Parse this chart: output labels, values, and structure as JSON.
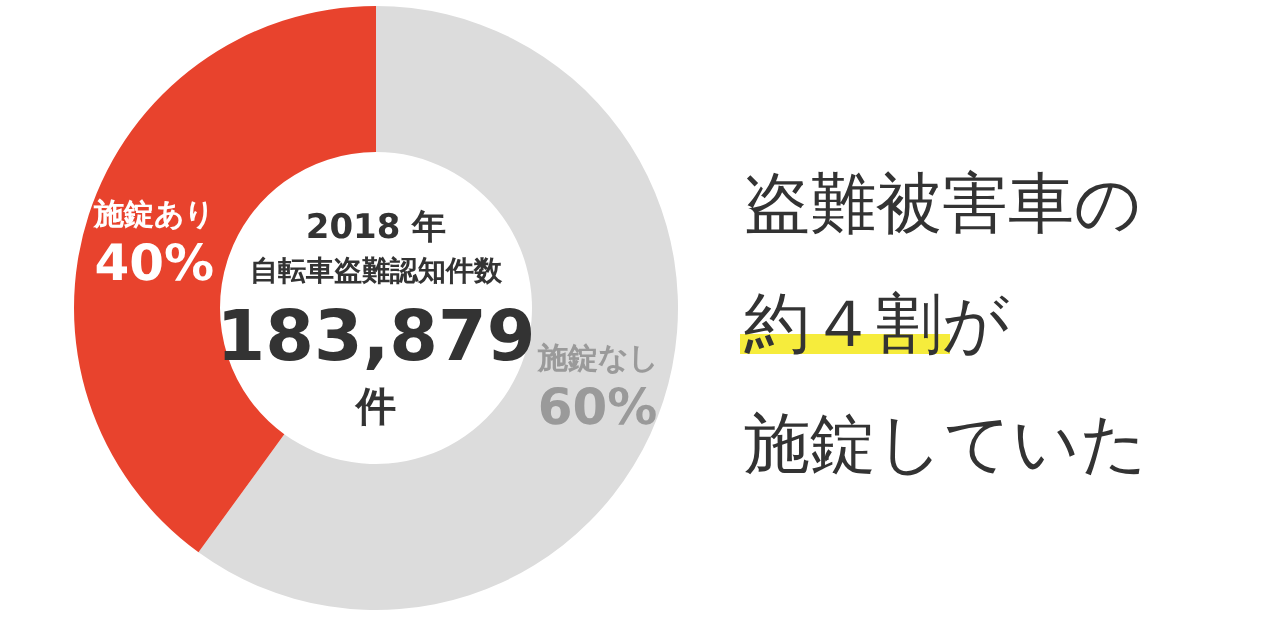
{
  "chart_data": {
    "type": "donut",
    "title": "2018 年",
    "subtitle": "自転車盗難認知件数",
    "categories": [
      "施錠なし",
      "施錠あり"
    ],
    "values": [
      60,
      40
    ],
    "colors": [
      "#dcdcdc",
      "#e8432d"
    ],
    "value_labels": [
      "60%",
      "40%"
    ],
    "annotations": [
      "183,879",
      "件",
      "盗難被害車の",
      "約４割が",
      "施錠していた"
    ]
  }
}
